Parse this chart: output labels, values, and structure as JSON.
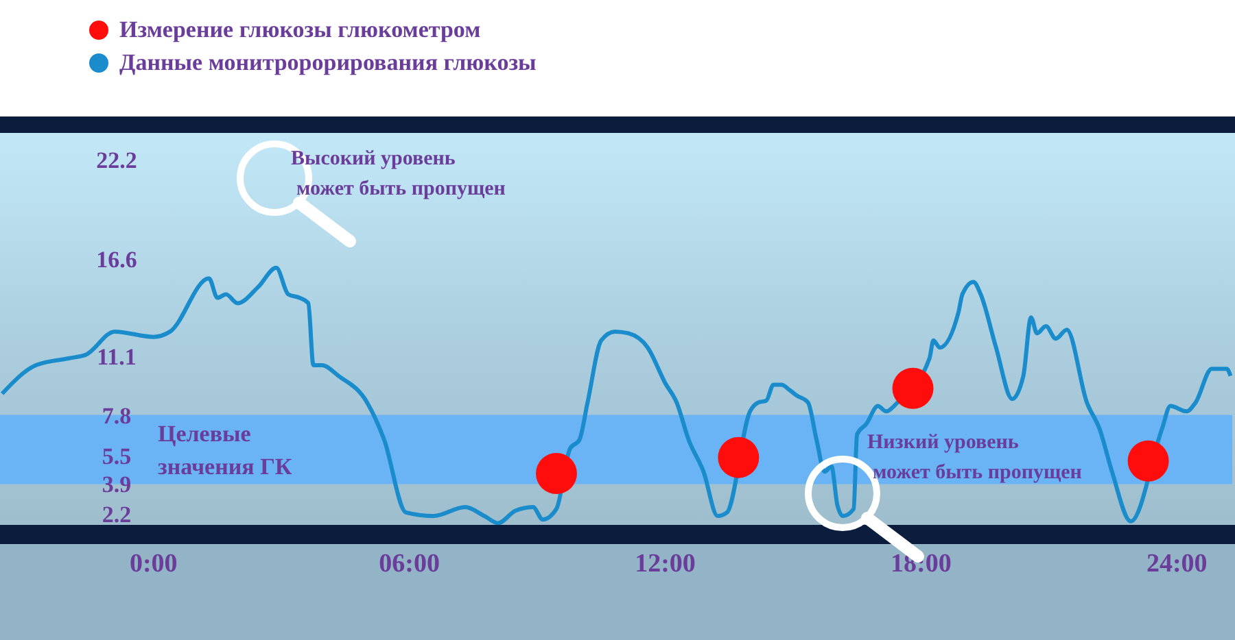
{
  "chart_data": {
    "type": "line",
    "x": [
      -3.55,
      -2.76,
      -1.97,
      -1.58,
      -0.91,
      0,
      0.39,
      1.3,
      1.5,
      1.7,
      1.97,
      2.45,
      2.88,
      3.16,
      3.43,
      3.63,
      3.75,
      3.95,
      4.34,
      5.01,
      5.41,
      5.92,
      6.57,
      7.31,
      7.76,
      8.08,
      8.49,
      8.9,
      9.13,
      9.45,
      9.77,
      9.99,
      10.18,
      10.5,
      10.82,
      11.14,
      11.59,
      12,
      12.27,
      12.55,
      12.9,
      13.23,
      13.45,
      13.99,
      14.18,
      14.37,
      14.54,
      14.73,
      14.92,
      15.08,
      15.35,
      15.55,
      15.74,
      15.9,
      16.04,
      16.17,
      16.42,
      16.5,
      16.72,
      16.99,
      17.18,
      17.45,
      18.2,
      18.29,
      18.44,
      18.88,
      18.97,
      19.23,
      19.4,
      19.76,
      20.14,
      20.4,
      20.58,
      20.72,
      20.93,
      21.16,
      21.42,
      21.89,
      22.19,
      22.48,
      22.92,
      23.65,
      23.85,
      24.23,
      24.44,
      24.82,
      25.17,
      25.26
    ],
    "series": [
      {
        "name": "Измерение глюкозы глюкометром",
        "type": "scatter",
        "color": "#ff0d0d",
        "marker": "circle",
        "x": [
          9.45,
          13.72,
          17.81,
          23.33
        ],
        "values": [
          4.5,
          5.4,
          9.3,
          5.2
        ]
      },
      {
        "name": "Данные монитророрирования глюкозы",
        "color": "#1a8ccc",
        "marker": "none",
        "values": [
          9.0,
          10.6,
          11.0,
          11.2,
          12.5,
          12.2,
          12.5,
          15.5,
          14.4,
          14.6,
          14.1,
          15.0,
          16.1,
          14.6,
          14.4,
          14.1,
          10.6,
          10.6,
          10.0,
          8.5,
          6.4,
          2.3,
          2.1,
          2.6,
          2.1,
          1.7,
          2.4,
          2.6,
          1.9,
          2.5,
          5.9,
          6.4,
          8.5,
          12.0,
          12.5,
          12.4,
          11.6,
          9.6,
          8.5,
          6.4,
          4.6,
          2.1,
          2.3,
          8.0,
          8.5,
          8.6,
          9.5,
          9.5,
          9.2,
          8.9,
          8.5,
          6.4,
          4.6,
          4.9,
          2.7,
          2.1,
          2.5,
          6.7,
          7.3,
          8.3,
          8.0,
          8.5,
          11.0,
          12.0,
          11.6,
          13.6,
          14.6,
          15.3,
          14.6,
          11.6,
          8.7,
          10.0,
          13.3,
          12.4,
          12.8,
          12.1,
          12.6,
          8.5,
          7.0,
          4.6,
          1.8,
          7.0,
          8.3,
          8.0,
          8.5,
          10.4,
          10.4,
          10.0
        ]
      }
    ],
    "xlim": [
      -3.6,
      25.3
    ],
    "xticks": [
      {
        "value": 0,
        "label": "0:00"
      },
      {
        "value": 6,
        "label": "06:00"
      },
      {
        "value": 12,
        "label": "12:00"
      },
      {
        "value": 18,
        "label": "18:00"
      },
      {
        "value": 24,
        "label": "24:00"
      }
    ],
    "ylim": [
      1.6,
      23.7
    ],
    "yticks": [
      2.2,
      3.9,
      5.5,
      7.8,
      11.1,
      16.6,
      22.2
    ],
    "bands": [
      {
        "axis": "y",
        "from": 3.9,
        "to": 7.8,
        "label": "Целевые значения ГК",
        "color": "#6ab4f5"
      }
    ],
    "annotations": [
      "Высокий уровень может быть пропущен",
      "Низкий уровень может быть пропущен"
    ],
    "legend": "top left",
    "line_style": "solid"
  }
}
